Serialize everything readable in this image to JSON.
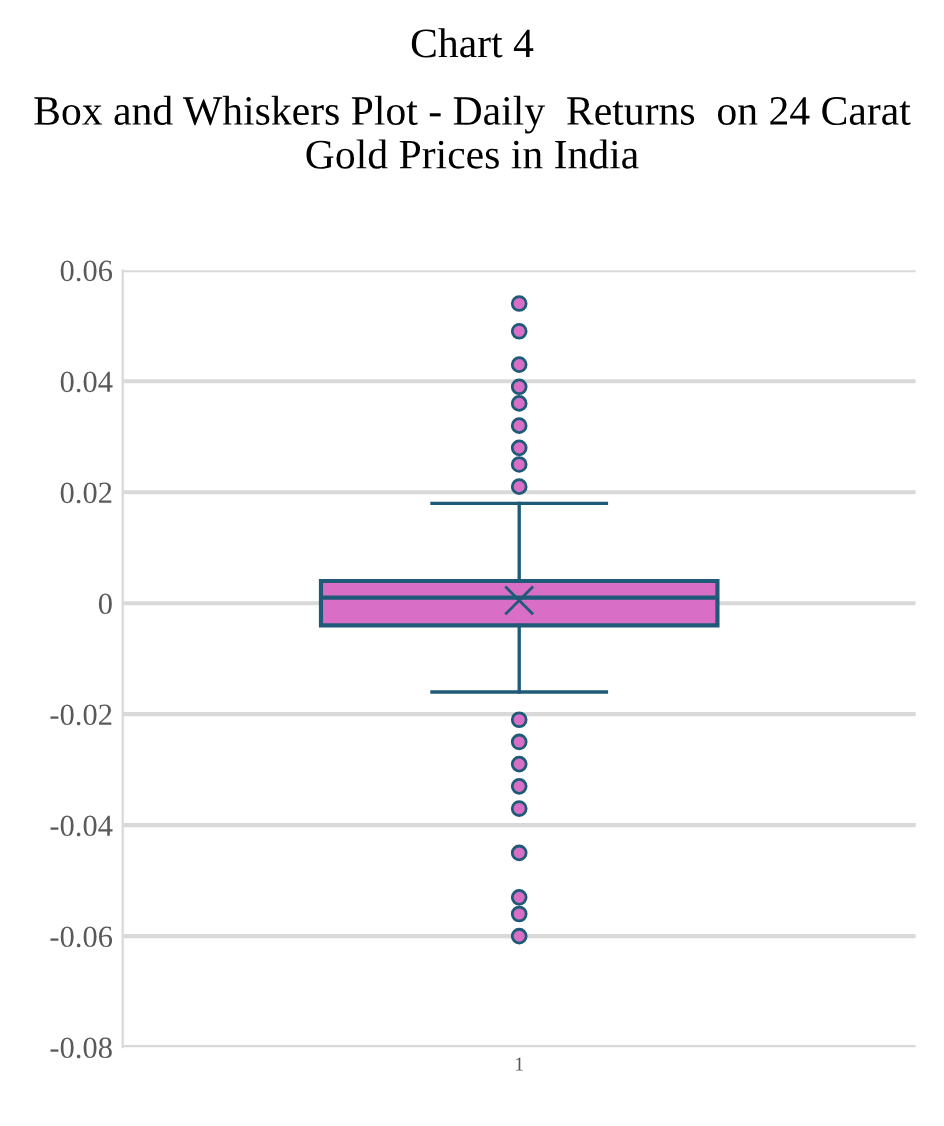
{
  "chart_data": {
    "type": "box",
    "title": "Chart 4",
    "subtitle": "Box and Whiskers Plot - Daily  Returns  on 24 Carat Gold Prices in India",
    "categories": [
      "1"
    ],
    "series": [
      {
        "color": "#d86ec6",
        "boxes": [
          {
            "low": -0.016,
            "q1": -0.004,
            "median": 0.001,
            "q3": 0.004,
            "high": 0.018,
            "mean": 0.0005,
            "outliers": [
              0.054,
              0.049,
              0.043,
              0.039,
              0.036,
              0.032,
              0.028,
              0.025,
              0.021,
              -0.021,
              -0.025,
              -0.029,
              -0.033,
              -0.037,
              -0.045,
              -0.053,
              -0.056,
              -0.06
            ]
          }
        ]
      }
    ],
    "ylim": [
      -0.08,
      0.06
    ],
    "yticks": [
      -0.08,
      -0.06,
      -0.04,
      -0.02,
      0,
      0.02,
      0.04,
      0.06
    ],
    "grid": "y",
    "legend": false
  }
}
